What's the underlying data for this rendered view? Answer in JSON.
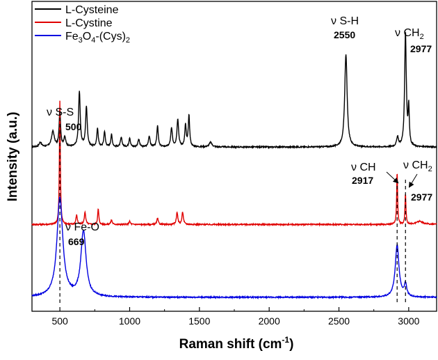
{
  "chart_data": {
    "type": "line",
    "title": "",
    "xlabel": "Raman shift (cm",
    "xlabel_sup": "-1",
    "xlabel_tail": ")",
    "ylabel": "Intensity (a.u.)",
    "xlim": [
      300,
      3200
    ],
    "x_ticks": [
      500,
      1000,
      1500,
      2000,
      2500,
      3000
    ],
    "grid": false,
    "legend_position": "top-left",
    "series": [
      {
        "name": "L-Cysteine",
        "color": "#000000",
        "baseline": 0.53,
        "peaks": [
          [
            360,
            0.015,
            10
          ],
          [
            450,
            0.05,
            12
          ],
          [
            500,
            0.12,
            6
          ],
          [
            535,
            0.03,
            8
          ],
          [
            640,
            0.18,
            7
          ],
          [
            690,
            0.13,
            7
          ],
          [
            770,
            0.06,
            6
          ],
          [
            820,
            0.05,
            6
          ],
          [
            870,
            0.04,
            6
          ],
          [
            940,
            0.03,
            7
          ],
          [
            1000,
            0.03,
            6
          ],
          [
            1065,
            0.025,
            7
          ],
          [
            1140,
            0.035,
            7
          ],
          [
            1200,
            0.07,
            6
          ],
          [
            1300,
            0.06,
            7
          ],
          [
            1345,
            0.09,
            7
          ],
          [
            1400,
            0.07,
            6
          ],
          [
            1425,
            0.1,
            6
          ],
          [
            1580,
            0.015,
            12
          ],
          [
            2550,
            0.3,
            10
          ],
          [
            2920,
            0.03,
            8
          ],
          [
            2977,
            0.37,
            7
          ],
          [
            3000,
            0.12,
            5
          ]
        ]
      },
      {
        "name": "L-Cystine",
        "color": "#e00000",
        "baseline": 0.28,
        "peaks": [
          [
            500,
            0.4,
            4
          ],
          [
            620,
            0.03,
            6
          ],
          [
            680,
            0.04,
            6
          ],
          [
            775,
            0.05,
            5
          ],
          [
            870,
            0.015,
            6
          ],
          [
            1000,
            0.01,
            6
          ],
          [
            1200,
            0.02,
            6
          ],
          [
            1340,
            0.04,
            6
          ],
          [
            1380,
            0.04,
            6
          ],
          [
            2917,
            0.17,
            4
          ],
          [
            2977,
            0.1,
            4
          ],
          [
            3080,
            0.01,
            30
          ]
        ]
      },
      {
        "name": "Fe3O4-(Cys)2",
        "color": "#0000e0",
        "baseline": 0.045,
        "peaks": [
          [
            500,
            0.32,
            25
          ],
          [
            669,
            0.21,
            22
          ],
          [
            2917,
            0.17,
            16
          ],
          [
            2977,
            0.04,
            10
          ]
        ]
      }
    ],
    "legend": [
      {
        "label": "L-Cysteine",
        "color": "#000000"
      },
      {
        "label": "L-Cystine",
        "color": "#e00000"
      },
      {
        "label_main": "Fe",
        "sub1": "3",
        "mid": "O",
        "sub2": "4",
        "tail": "-(Cys)",
        "sub3": "2",
        "color": "#0000e0"
      }
    ],
    "annotations": {
      "sh": {
        "greek": "ν S-H",
        "value": "2550"
      },
      "ch2_top": {
        "greek": "ν CH",
        "sub": "2",
        "value": "2977"
      },
      "ss": {
        "greek": "ν S-S",
        "value": "500"
      },
      "ch": {
        "greek": "ν CH",
        "value": "2917"
      },
      "ch2_mid": {
        "greek": "ν CH",
        "sub": "2",
        "value": "2977"
      },
      "feo": {
        "greek": "ν Fe-O",
        "value": "669"
      }
    },
    "dashed_lines_x": [
      500,
      2917,
      2977
    ]
  }
}
